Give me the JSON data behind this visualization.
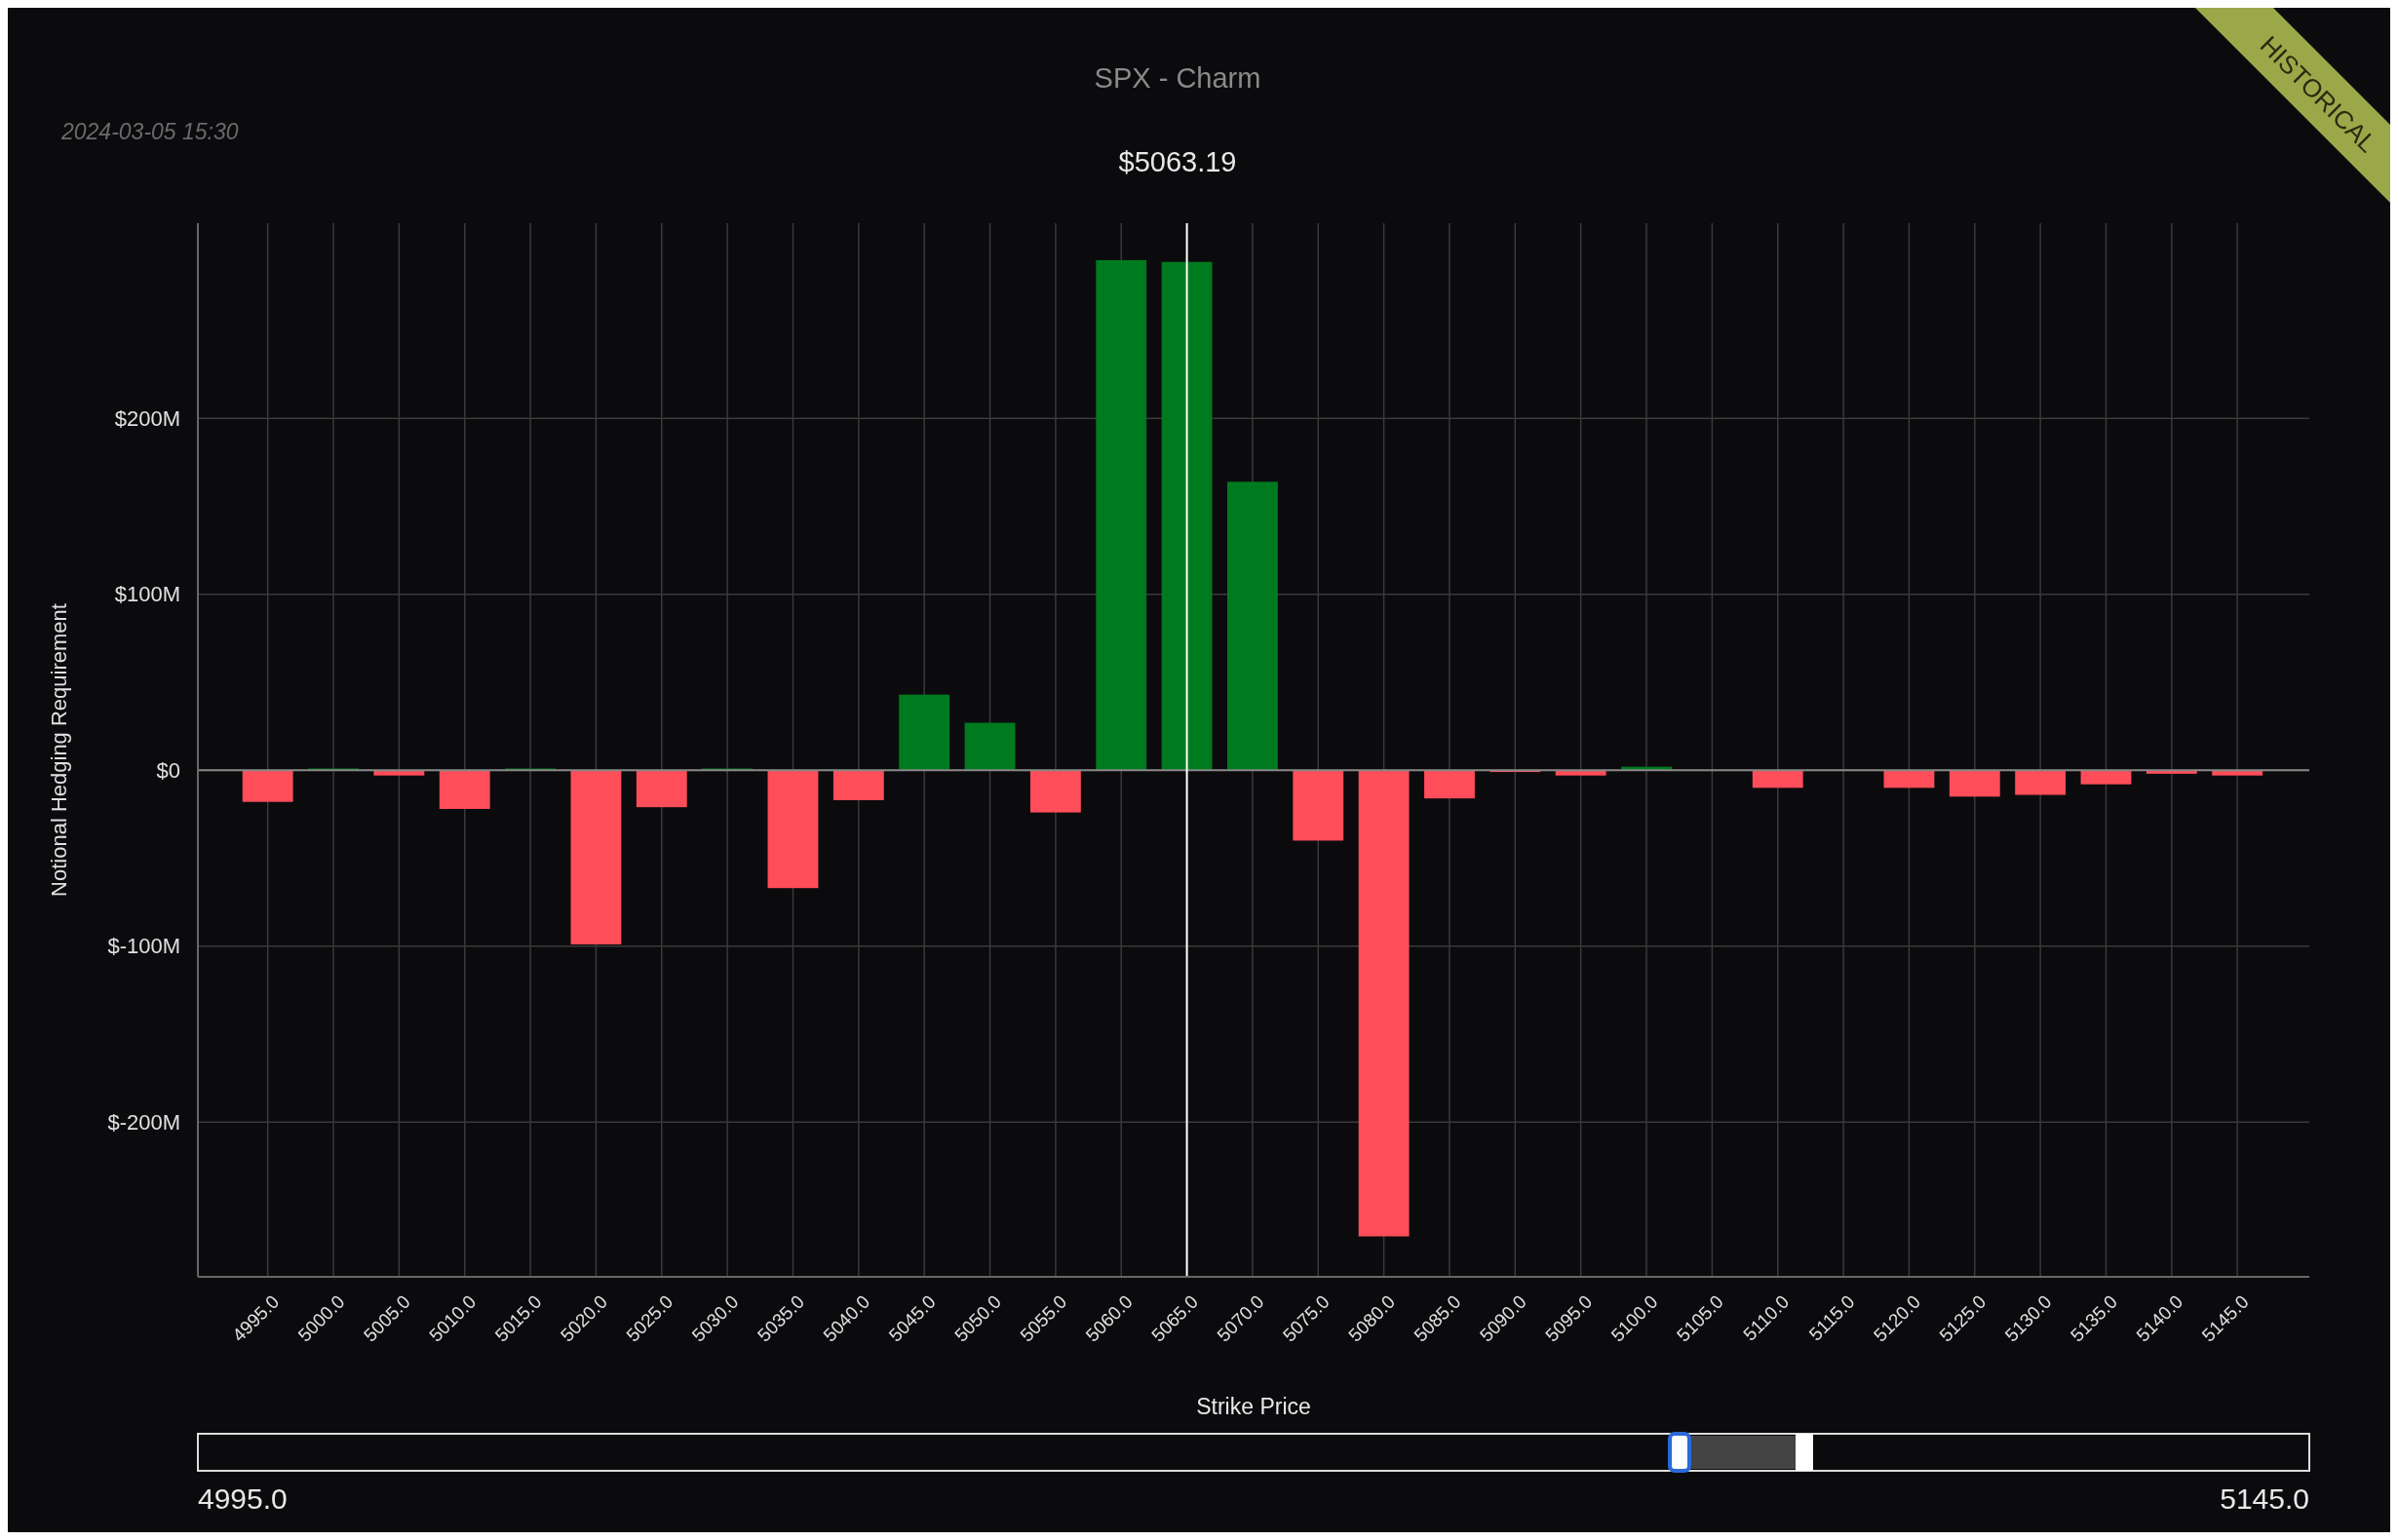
{
  "chart_data": {
    "type": "bar",
    "title": "SPX - Charm",
    "subtitle": "$5063.19",
    "xlabel": "Strike Price",
    "ylabel": "Notional Hedging Requirement",
    "categories": [
      "4995.0",
      "5000.0",
      "5005.0",
      "5010.0",
      "5015.0",
      "5020.0",
      "5025.0",
      "5030.0",
      "5035.0",
      "5040.0",
      "5045.0",
      "5050.0",
      "5055.0",
      "5060.0",
      "5065.0",
      "5070.0",
      "5075.0",
      "5080.0",
      "5085.0",
      "5090.0",
      "5095.0",
      "5100.0",
      "5105.0",
      "5110.0",
      "5115.0",
      "5120.0",
      "5125.0",
      "5130.0",
      "5135.0",
      "5140.0",
      "5145.0"
    ],
    "values": [
      -18,
      1,
      -3,
      -22,
      1,
      -99,
      -21,
      1,
      -67,
      -17,
      43,
      27,
      -24,
      290,
      289,
      164,
      -40,
      -265,
      -16,
      -1,
      -3,
      2,
      0,
      -10,
      0,
      -10,
      -15,
      -14,
      -8,
      -2,
      -3
    ],
    "colors": [
      "#ff4d5a",
      "#007a1e",
      "#ff4d5a",
      "#ff4d5a",
      "#007a1e",
      "#ff4d5a",
      "#ff4d5a",
      "#007a1e",
      "#ff4d5a",
      "#ff4d5a",
      "#007a1e",
      "#007a1e",
      "#ff4d5a",
      "#007a1e",
      "#007a1e",
      "#007a1e",
      "#ff4d5a",
      "#ff4d5a",
      "#ff4d5a",
      "#ff4d5a",
      "#ff4d5a",
      "#007a1e",
      "#007a1e",
      "#ff4d5a",
      "#007a1e",
      "#ff4d5a",
      "#ff4d5a",
      "#ff4d5a",
      "#ff4d5a",
      "#ff4d5a",
      "#ff4d5a"
    ],
    "ylim": [
      -288,
      311
    ],
    "yticks": [
      {
        "value": -200,
        "label": "$-200M"
      },
      {
        "value": -100,
        "label": "$-100M"
      },
      {
        "value": 0,
        "label": "$0"
      },
      {
        "value": 100,
        "label": "$100M"
      },
      {
        "value": 200,
        "label": "$200M"
      }
    ],
    "grid": true,
    "ref_lines": [
      {
        "axis": "x",
        "value": "5065.0",
        "color": "#ffffff"
      }
    ],
    "annotations": [
      "2024-03-05 15:30",
      "HISTORICAL",
      "4995.0",
      "5145.0"
    ]
  }
}
